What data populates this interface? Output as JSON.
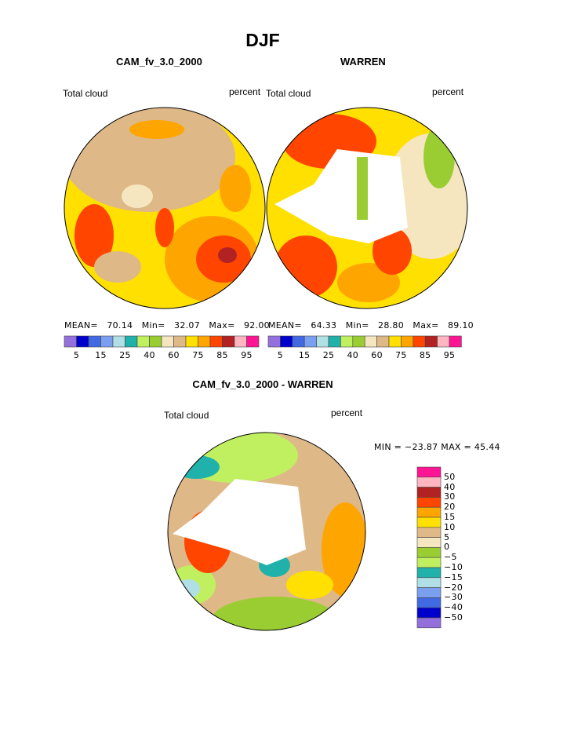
{
  "title": "DJF",
  "colors": [
    "#9370DB",
    "#0000CD",
    "#4169E1",
    "#7B9FEF",
    "#B0E0E6",
    "#20B2AA",
    "#C0F060",
    "#9ACD32",
    "#F5E6C0",
    "#DEB887",
    "#FFE000",
    "#FFA500",
    "#FF4500",
    "#B22222",
    "#FFB6C1",
    "#FF1493"
  ],
  "panels": [
    {
      "title": "CAM_fv_3.0_2000",
      "left_label": "Total cloud",
      "right_label": "percent",
      "stats": {
        "mean_label": "MEAN=",
        "mean": "70.14",
        "min_label": "Min=",
        "min": "32.07",
        "max_label": "Max=",
        "max": "92.00"
      },
      "colorbar_labels": [
        "5",
        "15",
        "25",
        "40",
        "60",
        "75",
        "85",
        "95"
      ]
    },
    {
      "title": "WARREN",
      "left_label": "Total cloud",
      "right_label": "percent",
      "stats": {
        "mean_label": "MEAN=",
        "mean": "64.33",
        "min_label": "Min=",
        "min": "28.80",
        "max_label": "Max=",
        "max": "89.10"
      },
      "colorbar_labels": [
        "5",
        "15",
        "25",
        "40",
        "60",
        "75",
        "85",
        "95"
      ]
    }
  ],
  "difference": {
    "title": "CAM_fv_3.0_2000 - WARREN",
    "left_label": "Total cloud",
    "right_label": "percent",
    "minmax": "MIN = −23.87 MAX =  45.44",
    "colorbar_labels": [
      "50",
      "40",
      "30",
      "20",
      "15",
      "10",
      "5",
      "0",
      "−5",
      "−10",
      "−15",
      "−20",
      "−30",
      "−40",
      "−50"
    ]
  }
}
